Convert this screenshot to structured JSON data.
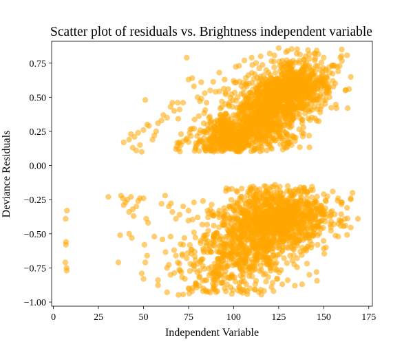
{
  "chart_data": {
    "type": "scatter",
    "title": "Scatter plot of residuals vs. Brightness independent variable",
    "xlabel": "Independent Variable",
    "ylabel": "Deviance Residuals",
    "xlim": [
      -1,
      177
    ],
    "ylim": [
      -1.03,
      0.91
    ],
    "xticks": [
      0,
      25,
      50,
      75,
      100,
      125,
      150,
      175
    ],
    "yticks": [
      -1.0,
      -0.75,
      -0.5,
      -0.25,
      0.0,
      0.25,
      0.5,
      0.75
    ],
    "ytick_labels": [
      "−1.00",
      "−0.75",
      "−0.50",
      "−0.25",
      "0.00",
      "0.25",
      "0.50",
      "0.75"
    ],
    "grid": false,
    "legend": "none",
    "marker_color": "#FFA500",
    "marker_alpha": 0.55,
    "series": [
      {
        "points": [
          [
            7.5,
            -0.33
          ],
          [
            6.8,
            -0.39
          ],
          [
            7.0,
            -0.56
          ],
          [
            6.9,
            -0.58
          ],
          [
            6.6,
            -0.71
          ],
          [
            7.3,
            -0.75
          ],
          [
            7.4,
            -0.77
          ],
          [
            30.5,
            -0.23
          ],
          [
            37.5,
            -0.22
          ],
          [
            38.5,
            -0.24
          ],
          [
            40.0,
            -0.27
          ],
          [
            39.0,
            -0.29
          ],
          [
            41.0,
            -0.25
          ],
          [
            43.0,
            -0.23
          ],
          [
            44.0,
            -0.32
          ],
          [
            46.0,
            -0.3
          ],
          [
            47.0,
            -0.26
          ],
          [
            48.0,
            -0.24
          ],
          [
            50.0,
            -0.24
          ],
          [
            42.0,
            -0.34
          ],
          [
            44.5,
            -0.37
          ],
          [
            37.0,
            -0.51
          ],
          [
            36.0,
            -0.71
          ],
          [
            42.0,
            -0.5
          ],
          [
            43.5,
            -0.53
          ],
          [
            50.5,
            -0.58
          ],
          [
            52.0,
            -0.66
          ],
          [
            51.0,
            -0.71
          ],
          [
            49.0,
            -0.79
          ],
          [
            50.0,
            -0.83
          ],
          [
            51.5,
            -0.39
          ],
          [
            52.5,
            -0.42
          ],
          [
            56.0,
            -0.52
          ],
          [
            39.0,
            0.17
          ],
          [
            42.0,
            0.19
          ],
          [
            44.0,
            0.13
          ],
          [
            45.0,
            0.21
          ],
          [
            47.0,
            0.24
          ],
          [
            48.0,
            0.15
          ],
          [
            46.0,
            0.11
          ],
          [
            49.0,
            0.1
          ],
          [
            43.0,
            0.23
          ],
          [
            50.0,
            0.26
          ],
          [
            51.0,
            0.48
          ],
          [
            52.0,
            0.3
          ],
          [
            53.0,
            0.29
          ],
          [
            55.0,
            0.19
          ],
          [
            56.0,
            0.22
          ],
          [
            57.0,
            0.25
          ],
          [
            58.0,
            0.31
          ],
          [
            60.0,
            0.33
          ],
          [
            61.0,
            0.37
          ],
          [
            63.0,
            0.35
          ],
          [
            65.0,
            0.43
          ],
          [
            66.0,
            0.46
          ],
          [
            67.0,
            0.4
          ],
          [
            69.0,
            0.46
          ],
          [
            70.0,
            0.41
          ],
          [
            72.0,
            0.46
          ],
          [
            74.0,
            0.79
          ],
          [
            75.0,
            0.63
          ],
          [
            77.0,
            0.64
          ],
          [
            78.0,
            0.58
          ],
          [
            80.0,
            0.5
          ],
          [
            82.0,
            0.61
          ],
          [
            84.0,
            0.53
          ],
          [
            85.0,
            0.46
          ],
          [
            87.0,
            0.55
          ],
          [
            90.0,
            0.54
          ],
          [
            92.0,
            0.68
          ],
          [
            95.0,
            0.63
          ],
          [
            97.0,
            0.56
          ],
          [
            100.0,
            0.62
          ],
          [
            103.0,
            0.73
          ],
          [
            106.0,
            0.77
          ],
          [
            110.0,
            0.79
          ],
          [
            115.0,
            0.8
          ],
          [
            120.0,
            0.82
          ],
          [
            125.0,
            0.86
          ],
          [
            130.0,
            0.84
          ],
          [
            135.0,
            0.82
          ],
          [
            140.0,
            0.8
          ],
          [
            145.0,
            0.77
          ],
          [
            150.0,
            0.79
          ],
          [
            153.0,
            0.72
          ],
          [
            156.0,
            0.73
          ],
          [
            158.0,
            0.69
          ],
          [
            160.0,
            0.85
          ],
          [
            162.0,
            0.55
          ],
          [
            164.0,
            0.56
          ],
          [
            155.0,
            0.62
          ],
          [
            152.0,
            0.58
          ],
          [
            148.0,
            0.7
          ],
          [
            142.0,
            0.73
          ],
          [
            60.0,
            -0.28
          ],
          [
            62.0,
            -0.22
          ],
          [
            64.0,
            -0.3
          ],
          [
            66.0,
            -0.34
          ],
          [
            68.0,
            -0.39
          ],
          [
            70.0,
            -0.36
          ],
          [
            72.0,
            -0.3
          ],
          [
            75.0,
            -0.33
          ],
          [
            78.0,
            -0.27
          ],
          [
            80.0,
            -0.38
          ],
          [
            83.0,
            -0.26
          ],
          [
            86.0,
            -0.35
          ],
          [
            89.0,
            -0.44
          ],
          [
            92.0,
            -0.33
          ],
          [
            95.0,
            -0.39
          ],
          [
            98.0,
            -0.3
          ],
          [
            101.0,
            -0.27
          ],
          [
            104.0,
            -0.23
          ],
          [
            108.0,
            -0.19
          ],
          [
            112.0,
            -0.17
          ],
          [
            117.0,
            -0.15
          ],
          [
            123.0,
            -0.14
          ],
          [
            130.0,
            -0.15
          ],
          [
            137.0,
            -0.16
          ],
          [
            144.0,
            -0.18
          ],
          [
            150.0,
            -0.21
          ],
          [
            155.0,
            -0.19
          ],
          [
            158.0,
            -0.24
          ],
          [
            160.0,
            -0.27
          ],
          [
            163.0,
            -0.31
          ],
          [
            166.0,
            -0.2
          ],
          [
            169.0,
            -0.39
          ],
          [
            162.0,
            -0.44
          ],
          [
            158.0,
            -0.52
          ],
          [
            65.0,
            -0.52
          ],
          [
            67.0,
            -0.62
          ],
          [
            69.0,
            -0.71
          ],
          [
            71.0,
            -0.78
          ],
          [
            73.0,
            -0.83
          ],
          [
            75.0,
            -0.9
          ],
          [
            77.0,
            -0.92
          ],
          [
            79.0,
            -0.86
          ],
          [
            81.0,
            -0.88
          ],
          [
            83.0,
            -0.92
          ],
          [
            85.0,
            -0.84
          ],
          [
            87.0,
            -0.93
          ],
          [
            89.0,
            -0.88
          ],
          [
            91.0,
            -0.92
          ],
          [
            93.0,
            -0.86
          ],
          [
            95.0,
            -0.9
          ],
          [
            97.0,
            -0.82
          ],
          [
            99.0,
            -0.94
          ],
          [
            101.0,
            -0.85
          ],
          [
            103.0,
            -0.89
          ],
          [
            105.0,
            -0.91
          ],
          [
            107.0,
            -0.87
          ],
          [
            109.0,
            -0.9
          ],
          [
            112.0,
            -0.87
          ],
          [
            115.0,
            -0.91
          ],
          [
            118.0,
            -0.85
          ],
          [
            121.0,
            -0.89
          ],
          [
            124.0,
            -0.83
          ],
          [
            127.0,
            -0.87
          ],
          [
            130.0,
            -0.84
          ],
          [
            134.0,
            -0.88
          ],
          [
            138.0,
            -0.87
          ],
          [
            142.0,
            -0.8
          ],
          [
            146.0,
            -0.78
          ],
          [
            63.0,
            -0.75
          ],
          [
            65.0,
            -0.8
          ],
          [
            68.0,
            -0.66
          ],
          [
            72.0,
            -0.58
          ],
          [
            74.0,
            -0.68
          ],
          [
            76.0,
            -0.72
          ],
          [
            78.0,
            -0.49
          ]
        ]
      }
    ],
    "clusters": [
      {
        "cx": 118,
        "cy": 0.4,
        "sx": 14,
        "sy": 0.14,
        "n": 1100,
        "tilt": 0.0045
      },
      {
        "cx": 97,
        "cy": 0.22,
        "sx": 11,
        "sy": 0.07,
        "n": 350,
        "tilt": 0.002
      },
      {
        "cx": 135,
        "cy": 0.58,
        "sx": 10,
        "sy": 0.1,
        "n": 400,
        "tilt": 0.002
      },
      {
        "cx": 125,
        "cy": -0.38,
        "sx": 14,
        "sy": 0.11,
        "n": 1000,
        "tilt": 0.0
      },
      {
        "cx": 108,
        "cy": -0.62,
        "sx": 12,
        "sy": 0.13,
        "n": 350,
        "tilt": 0.0
      },
      {
        "cx": 90,
        "cy": -0.7,
        "sx": 12,
        "sy": 0.15,
        "n": 180,
        "tilt": 0.0
      }
    ]
  }
}
